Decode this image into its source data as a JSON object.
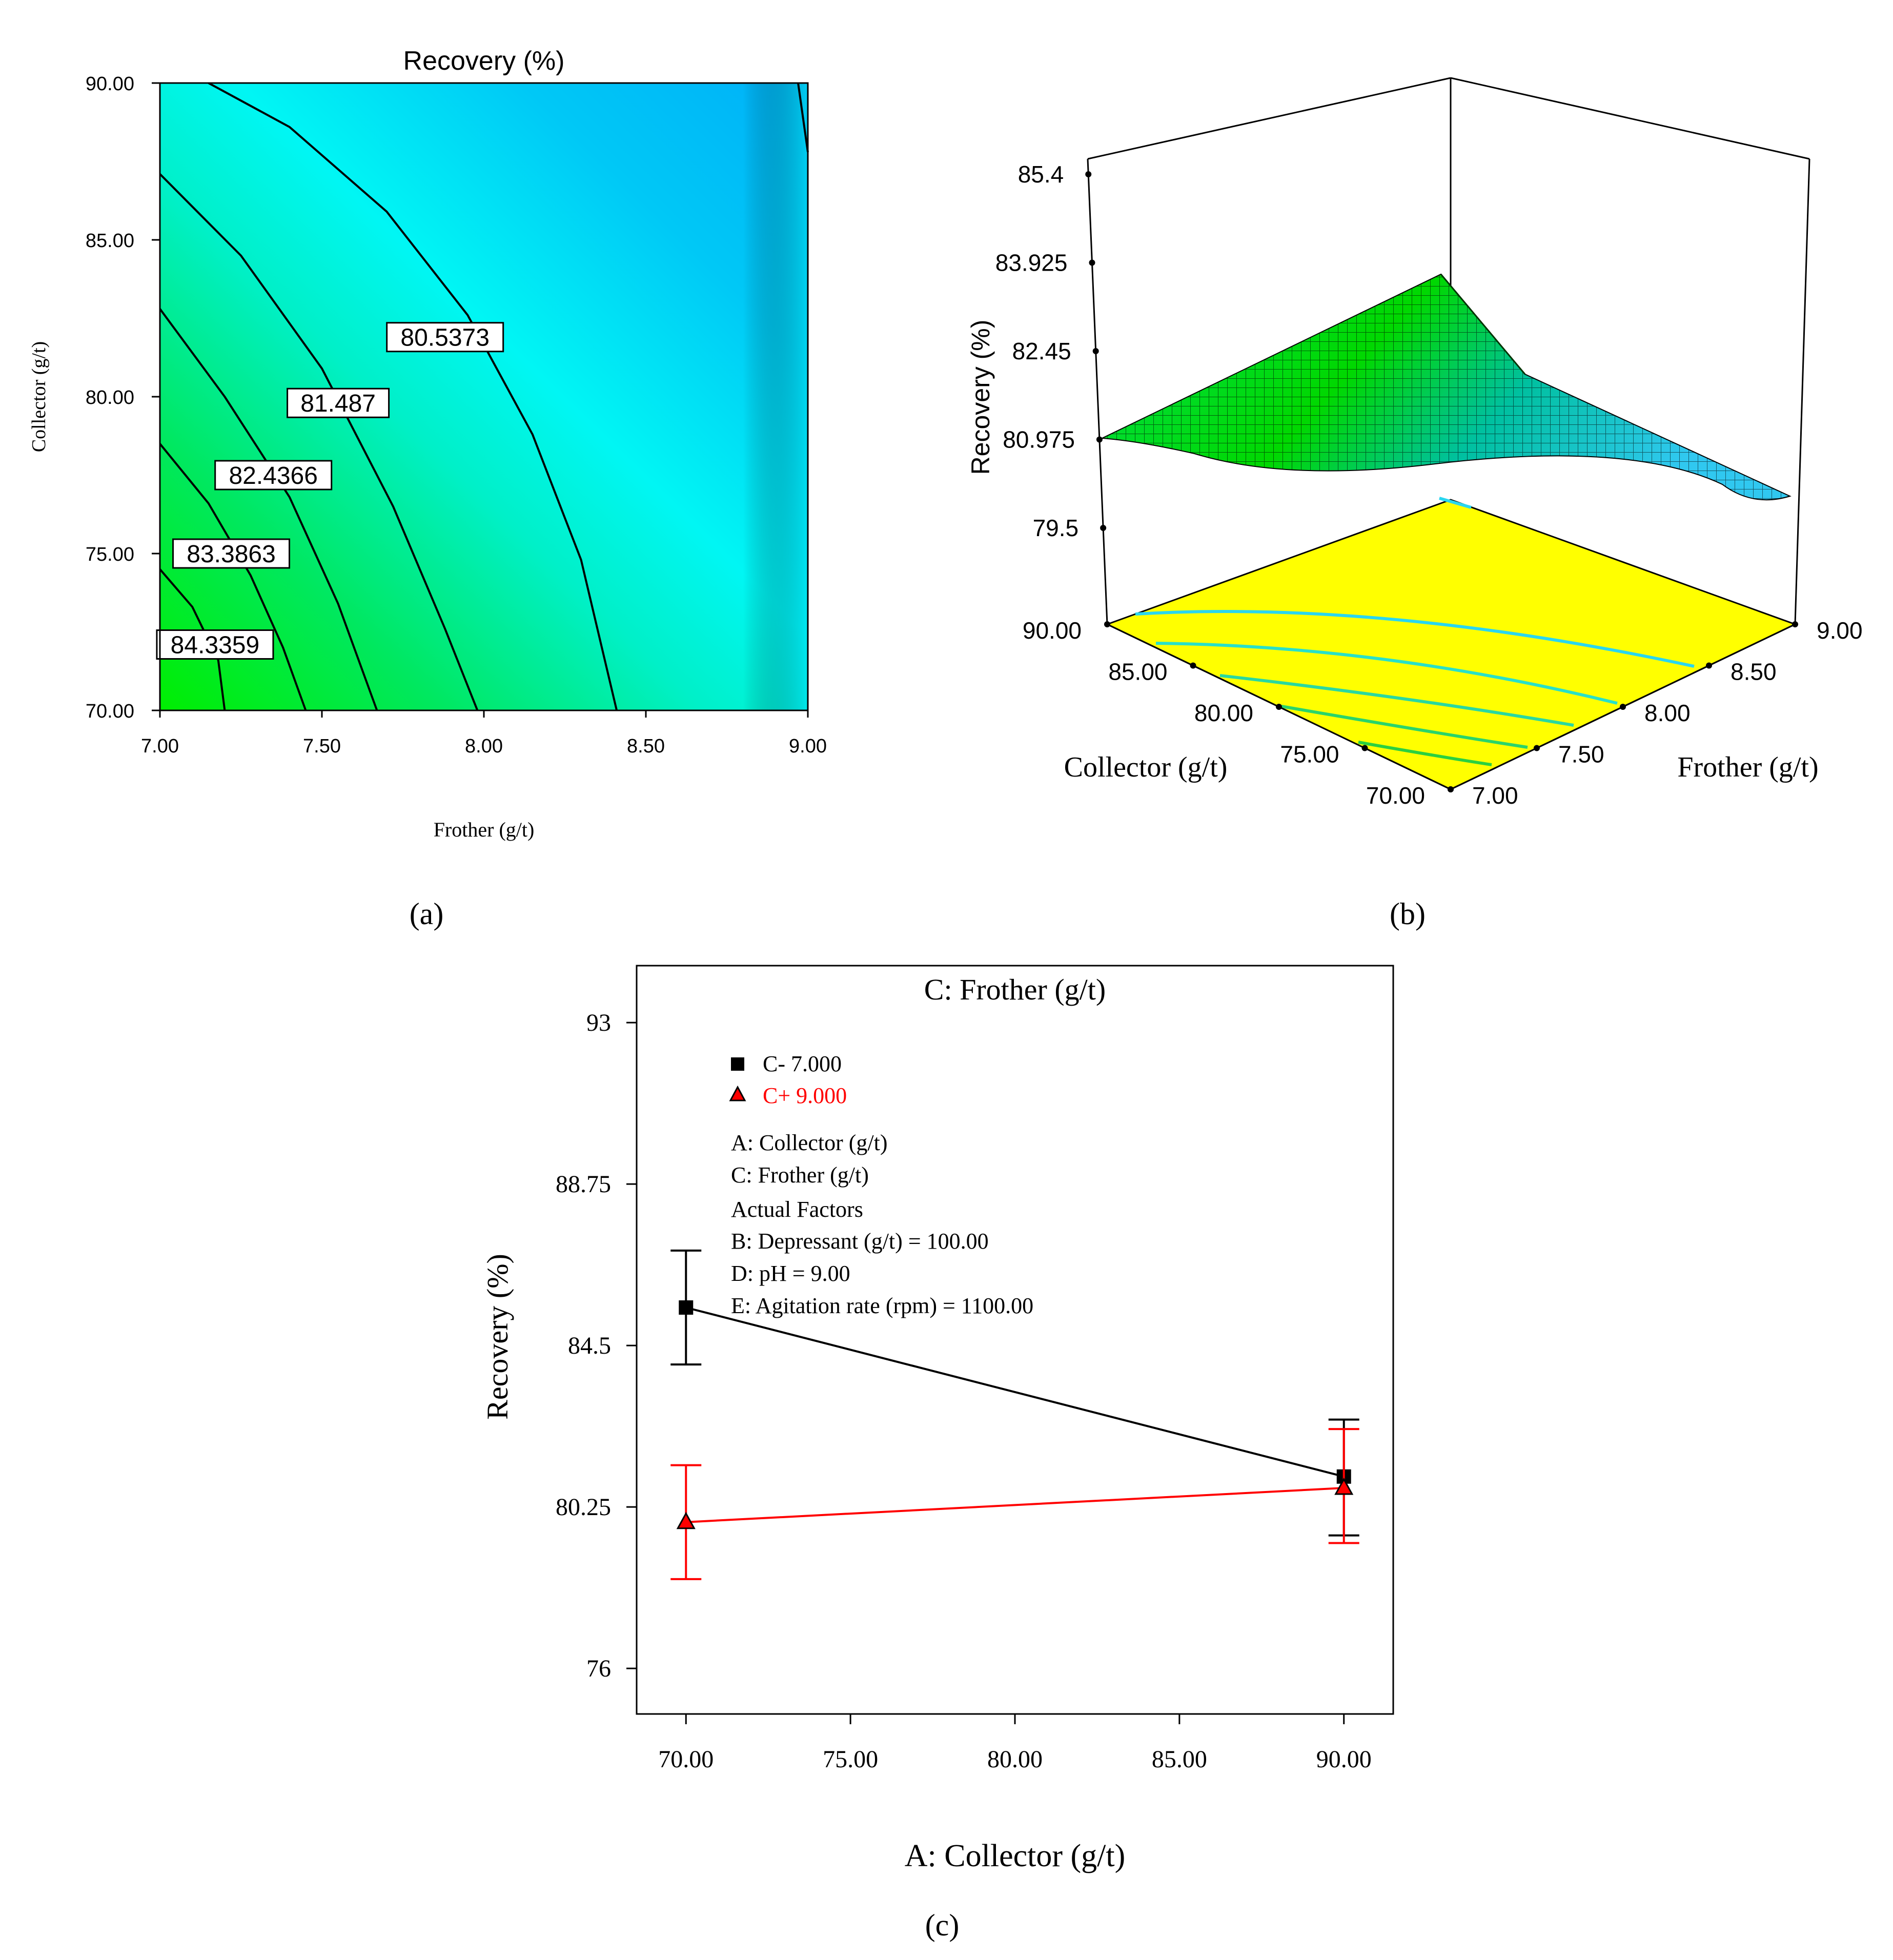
{
  "chart_data": [
    {
      "id": "a",
      "type": "contour",
      "panel_label": "(a)",
      "title": "Recovery (%)",
      "xlabel": "Frother (g/t)",
      "ylabel": "Collector (g/t)",
      "xlim": [
        7.0,
        9.0
      ],
      "ylim": [
        70.0,
        90.0
      ],
      "x_ticks": [
        "7.00",
        "7.50",
        "8.00",
        "8.50",
        "9.00"
      ],
      "y_ticks": [
        "70.00",
        "75.00",
        "80.00",
        "85.00",
        "90.00"
      ],
      "contour_levels": [
        "80.5373",
        "81.487",
        "82.4366",
        "83.3863",
        "84.3359"
      ],
      "contours": [
        {
          "label": "80.5373",
          "label_pos": [
            7.88,
            81.9
          ],
          "points": [
            [
              7.15,
              90.0
            ],
            [
              7.4,
              88.6
            ],
            [
              7.7,
              85.9
            ],
            [
              7.95,
              82.6
            ],
            [
              8.15,
              78.8
            ],
            [
              8.3,
              74.8
            ],
            [
              8.41,
              70.0
            ]
          ]
        },
        {
          "label": "81.487",
          "label_pos": [
            7.55,
            79.8
          ],
          "points": [
            [
              7.0,
              87.1
            ],
            [
              7.25,
              84.5
            ],
            [
              7.5,
              80.9
            ],
            [
              7.72,
              76.5
            ],
            [
              7.88,
              72.6
            ],
            [
              7.98,
              70.0
            ]
          ]
        },
        {
          "label": "82.4366",
          "label_pos": [
            7.35,
            77.5
          ],
          "points": [
            [
              7.0,
              82.8
            ],
            [
              7.2,
              80.0
            ],
            [
              7.4,
              76.8
            ],
            [
              7.55,
              73.4
            ],
            [
              7.67,
              70.0
            ]
          ]
        },
        {
          "label": "83.3863",
          "label_pos": [
            7.22,
            75.0
          ],
          "points": [
            [
              7.0,
              78.5
            ],
            [
              7.15,
              76.6
            ],
            [
              7.28,
              74.3
            ],
            [
              7.38,
              72.0
            ],
            [
              7.45,
              70.0
            ]
          ]
        },
        {
          "label": "84.3359",
          "label_pos": [
            7.17,
            72.1
          ],
          "points": [
            [
              7.0,
              74.5
            ],
            [
              7.1,
              73.3
            ],
            [
              7.18,
              71.6
            ],
            [
              7.2,
              70.0
            ]
          ]
        },
        {
          "label": "",
          "label_pos": null,
          "points": [
            [
              8.97,
              90.0
            ],
            [
              9.0,
              87.8
            ]
          ]
        }
      ],
      "color_scale": [
        "#00ee00",
        "#00f0b0",
        "#00f6f6",
        "#00b8f8",
        "#00c8f2"
      ]
    },
    {
      "id": "b",
      "type": "surface3d",
      "panel_label": "(b)",
      "zlabel": "Recovery (%)",
      "xlabel": "Collector (g/t)",
      "ylabel": "Frother (g/t)",
      "z_ticks": [
        "85.4",
        "83.925",
        "82.45",
        "80.975",
        "79.5"
      ],
      "zlim": [
        79.5,
        85.4
      ],
      "collector_ticks": [
        "90.00",
        "85.00",
        "80.00",
        "75.00",
        "70.00"
      ],
      "frother_ticks": [
        "9.00",
        "8.50",
        "8.00",
        "7.50",
        "7.00"
      ],
      "corners": {
        "collector70_frother7": 85.1,
        "collector90_frother7": 80.9,
        "collector70_frother9": 80.2,
        "collector90_frother9": 80.4
      },
      "floor_color": "#ffff00",
      "surface_color": "#00e000"
    },
    {
      "id": "c",
      "type": "line",
      "panel_label": "(c)",
      "title": "C: Frother (g/t)",
      "xlabel": "A: Collector (g/t)",
      "ylabel": "Recovery (%)",
      "xlim": [
        68.5,
        91.5
      ],
      "ylim": [
        74.8,
        94.5
      ],
      "x_ticks": [
        "70.00",
        "75.00",
        "80.00",
        "85.00",
        "90.00"
      ],
      "y_ticks": [
        "93",
        "88.75",
        "84.5",
        "80.25",
        "76"
      ],
      "x": [
        70.0,
        90.0
      ],
      "series": [
        {
          "name": "C- 7.000",
          "color": "#000000",
          "marker": "square",
          "values": [
            85.5,
            81.05
          ],
          "err_low": [
            84.0,
            79.5
          ],
          "err_high": [
            87.0,
            82.55
          ]
        },
        {
          "name": "C+ 9.000",
          "color": "#ff0000",
          "marker": "triangle",
          "values": [
            79.85,
            80.75
          ],
          "err_low": [
            78.35,
            79.3
          ],
          "err_high": [
            81.35,
            82.3
          ]
        }
      ],
      "annotations": [
        "A: Collector (g/t)",
        "C: Frother (g/t)",
        "Actual Factors",
        "B: Depressant (g/t) = 100.00",
        "D: pH = 9.00",
        "E: Agitation rate (rpm) = 1100.00"
      ]
    }
  ]
}
